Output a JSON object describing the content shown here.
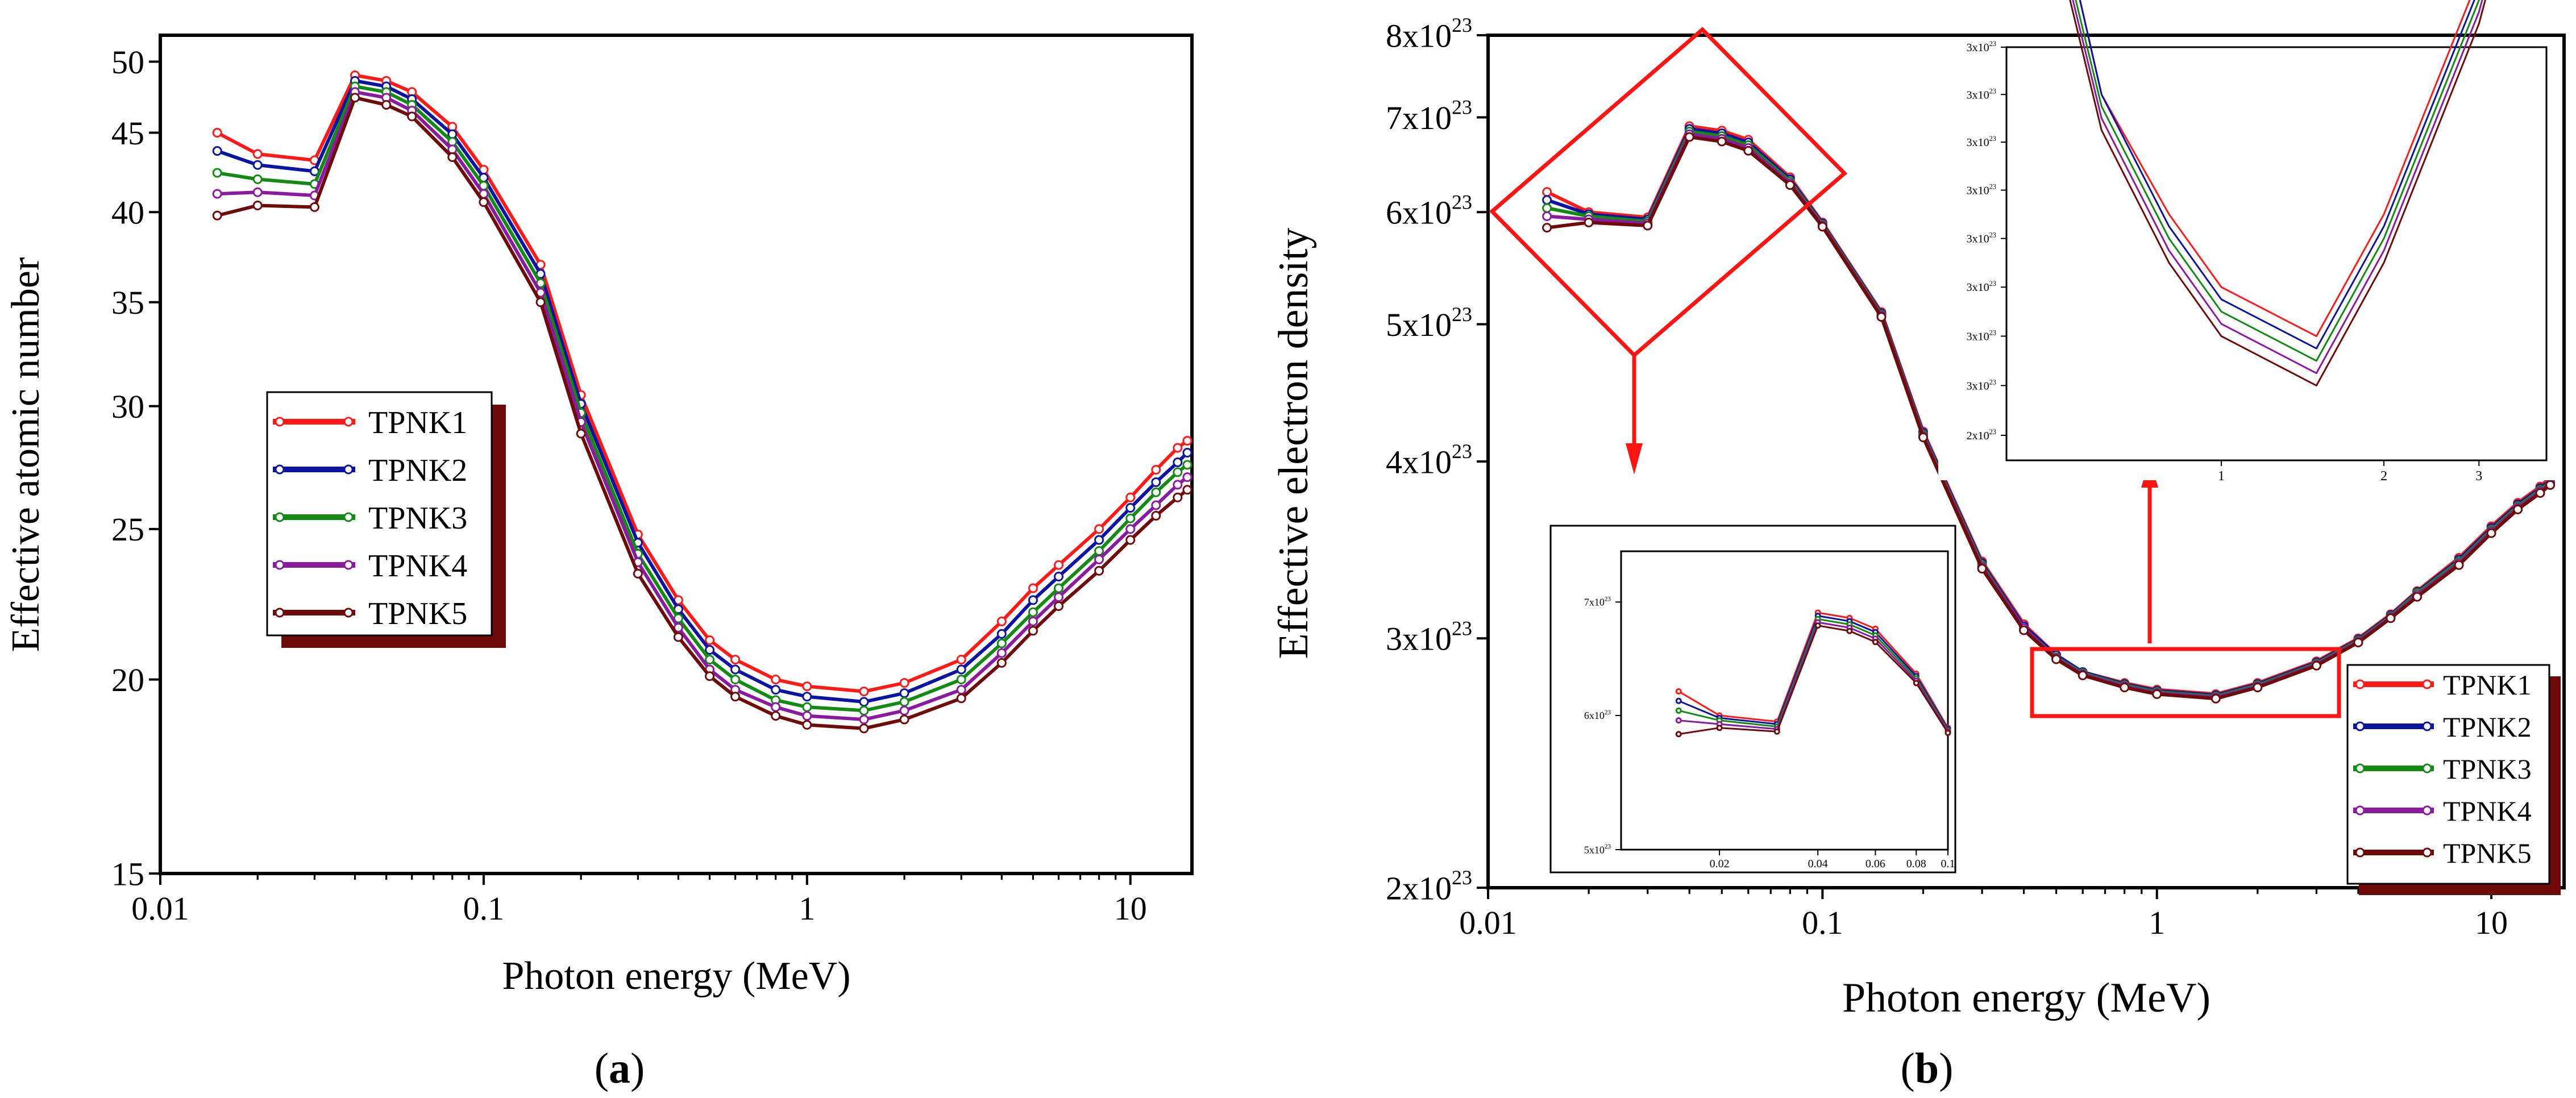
{
  "figure": {
    "panel_a_label": "a",
    "panel_b_label": "b"
  },
  "colors": {
    "TPNK1": "#ff1a1a",
    "TPNK2": "#0a14a0",
    "TPNK3": "#138a13",
    "TPNK4": "#8a1aa0",
    "TPNK5": "#6e0a0a",
    "highlight": "#ff1414",
    "legend_shadow": "#6e0a0a"
  },
  "chart_data": [
    {
      "id": "a",
      "type": "line",
      "xscale": "log",
      "yscale": "log",
      "xlabel": "Photon energy (MeV)",
      "ylabel": "Effective atomic number",
      "xlim": [
        0.01,
        15.5
      ],
      "ylim": [
        15,
        52
      ],
      "xticks": [
        0.01,
        0.1,
        1,
        10
      ],
      "xtick_labels": [
        "0.01",
        "0.1",
        "1",
        "10"
      ],
      "yticks": [
        15,
        20,
        25,
        30,
        35,
        40,
        45,
        50
      ],
      "ytick_labels": [
        "15",
        "20",
        "25",
        "30",
        "35",
        "40",
        "45",
        "50"
      ],
      "legend_position": "center-left",
      "x": [
        0.015,
        0.02,
        0.03,
        0.04,
        0.05,
        0.06,
        0.08,
        0.1,
        0.15,
        0.2,
        0.3,
        0.4,
        0.5,
        0.6,
        0.8,
        1,
        1.5,
        2,
        3,
        4,
        5,
        6,
        8,
        10,
        12,
        14,
        15
      ],
      "series": [
        {
          "name": "TPNK1",
          "values": [
            45.0,
            43.6,
            43.2,
            49.0,
            48.6,
            47.8,
            45.4,
            42.6,
            37.0,
            30.5,
            24.8,
            22.5,
            21.2,
            20.6,
            20.0,
            19.8,
            19.65,
            19.9,
            20.6,
            21.8,
            22.9,
            23.7,
            25.0,
            26.2,
            27.3,
            28.2,
            28.5
          ]
        },
        {
          "name": "TPNK2",
          "values": [
            43.8,
            42.9,
            42.5,
            48.6,
            48.2,
            47.3,
            44.9,
            42.1,
            36.5,
            30.1,
            24.5,
            22.2,
            20.9,
            20.3,
            19.7,
            19.5,
            19.35,
            19.6,
            20.3,
            21.4,
            22.5,
            23.3,
            24.6,
            25.8,
            26.8,
            27.6,
            28.0
          ]
        },
        {
          "name": "TPNK3",
          "values": [
            42.4,
            42.0,
            41.7,
            48.2,
            47.8,
            46.9,
            44.4,
            41.6,
            36.0,
            29.7,
            24.1,
            21.9,
            20.6,
            20.0,
            19.4,
            19.2,
            19.1,
            19.35,
            20.0,
            21.1,
            22.1,
            22.9,
            24.2,
            25.4,
            26.4,
            27.2,
            27.5
          ]
        },
        {
          "name": "TPNK4",
          "values": [
            41.1,
            41.2,
            41.0,
            47.8,
            47.4,
            46.5,
            43.9,
            41.1,
            35.5,
            29.3,
            23.8,
            21.6,
            20.3,
            19.7,
            19.2,
            18.95,
            18.85,
            19.1,
            19.7,
            20.8,
            21.8,
            22.6,
            23.9,
            25.0,
            25.9,
            26.7,
            27.0
          ]
        },
        {
          "name": "TPNK5",
          "values": [
            39.8,
            40.4,
            40.3,
            47.4,
            46.9,
            46.1,
            43.4,
            40.6,
            35.0,
            28.8,
            23.4,
            21.3,
            20.1,
            19.5,
            18.95,
            18.7,
            18.6,
            18.85,
            19.45,
            20.5,
            21.5,
            22.3,
            23.5,
            24.6,
            25.5,
            26.2,
            26.5
          ]
        }
      ]
    },
    {
      "id": "b",
      "type": "line",
      "xscale": "log",
      "yscale": "log",
      "xlabel": "Photon energy (MeV)",
      "ylabel": "Effective electron density",
      "xlim": [
        0.01,
        16.5
      ],
      "ylim": [
        2e+23,
        8e+23
      ],
      "xticks": [
        0.01,
        0.1,
        1,
        10
      ],
      "xtick_labels": [
        "0.01",
        "0.1",
        "1",
        "10"
      ],
      "yticks": [
        2e+23,
        3e+23,
        4e+23,
        5e+23,
        6e+23,
        7e+23,
        8e+23
      ],
      "ytick_labels": [
        {
          "mant": "2x10",
          "exp": "23"
        },
        {
          "mant": "3x10",
          "exp": "23"
        },
        {
          "mant": "4x10",
          "exp": "23"
        },
        {
          "mant": "5x10",
          "exp": "23"
        },
        {
          "mant": "6x10",
          "exp": "23"
        },
        {
          "mant": "7x10",
          "exp": "23"
        },
        {
          "mant": "8x10",
          "exp": "23"
        }
      ],
      "legend_position": "bottom-right",
      "x": [
        0.015,
        0.02,
        0.03,
        0.04,
        0.05,
        0.06,
        0.08,
        0.1,
        0.15,
        0.2,
        0.3,
        0.4,
        0.5,
        0.6,
        0.8,
        1,
        1.5,
        2,
        3,
        4,
        5,
        6,
        8,
        10,
        12,
        14,
        15
      ],
      "series": [
        {
          "name": "TPNK1",
          "values": [
            6.2e+23,
            6e+23,
            5.95e+23,
            6.9e+23,
            6.85e+23,
            6.75e+23,
            6.35e+23,
            5.9e+23,
            5.1e+23,
            4.2e+23,
            3.4e+23,
            3.07e+23,
            2.92e+23,
            2.84e+23,
            2.79e+23,
            2.76e+23,
            2.74e+23,
            2.79e+23,
            2.89e+23,
            3e+23,
            3.12e+23,
            3.24e+23,
            3.42e+23,
            3.6e+23,
            3.74e+23,
            3.84e+23,
            3.9e+23
          ]
        },
        {
          "name": "TPNK2",
          "values": [
            6.12e+23,
            5.98e+23,
            5.93e+23,
            6.87e+23,
            6.82e+23,
            6.72e+23,
            6.33e+23,
            5.89e+23,
            5.09e+23,
            4.19e+23,
            3.39e+23,
            3.06e+23,
            2.92e+23,
            2.84e+23,
            2.785e+23,
            2.755e+23,
            2.735e+23,
            2.785e+23,
            2.885e+23,
            2.995e+23,
            3.115e+23,
            3.235e+23,
            3.41e+23,
            3.59e+23,
            3.73e+23,
            3.83e+23,
            3.88e+23
          ]
        },
        {
          "name": "TPNK3",
          "values": [
            6.04e+23,
            5.96e+23,
            5.91e+23,
            6.84e+23,
            6.79e+23,
            6.69e+23,
            6.31e+23,
            5.88e+23,
            5.08e+23,
            4.18e+23,
            3.38e+23,
            3.05e+23,
            2.91e+23,
            2.835e+23,
            2.78e+23,
            2.75e+23,
            2.73e+23,
            2.78e+23,
            2.88e+23,
            2.99e+23,
            3.11e+23,
            3.23e+23,
            3.4e+23,
            3.58e+23,
            3.72e+23,
            3.82e+23,
            3.87e+23
          ]
        },
        {
          "name": "TPNK4",
          "values": [
            5.96e+23,
            5.93e+23,
            5.89e+23,
            6.81e+23,
            6.76e+23,
            6.66e+23,
            6.29e+23,
            5.87e+23,
            5.07e+23,
            4.17e+23,
            3.37e+23,
            3.05e+23,
            2.905e+23,
            2.83e+23,
            2.775e+23,
            2.745e+23,
            2.725e+23,
            2.775e+23,
            2.875e+23,
            2.985e+23,
            3.105e+23,
            3.22e+23,
            3.39e+23,
            3.57e+23,
            3.71e+23,
            3.81e+23,
            3.86e+23
          ]
        },
        {
          "name": "TPNK5",
          "values": [
            5.85e+23,
            5.9e+23,
            5.87e+23,
            6.78e+23,
            6.73e+23,
            6.63e+23,
            6.27e+23,
            5.86e+23,
            5.06e+23,
            4.16e+23,
            3.36e+23,
            3.04e+23,
            2.9e+23,
            2.825e+23,
            2.77e+23,
            2.74e+23,
            2.72e+23,
            2.77e+23,
            2.87e+23,
            2.98e+23,
            3.1e+23,
            3.21e+23,
            3.38e+23,
            3.56e+23,
            3.7e+23,
            3.8e+23,
            3.85e+23
          ]
        }
      ],
      "inset_low_energy": {
        "xlim": [
          0.01,
          0.1
        ],
        "ylim": [
          5e+23,
          7.5e+23
        ],
        "xticks": [
          0.02,
          0.04,
          0.06,
          0.08,
          0.1
        ],
        "xtick_labels": [
          "0.02",
          "0.04",
          "0.06",
          "0.08",
          "0.1"
        ],
        "yticks": [
          5e+23,
          6e+23,
          7e+23
        ],
        "ytick_labels": [
          "5x10",
          "6x10",
          "7x10"
        ],
        "ytick_exp": "23"
      },
      "inset_minimum": {
        "xlim": [
          0.4,
          4.0
        ],
        "ylim": [
          2.69e+23,
          2.86e+23
        ],
        "xticks": [
          1,
          2,
          3
        ],
        "xtick_labels": [
          "1",
          "2",
          "3"
        ],
        "yticks": [
          2.7e+23,
          2.72e+23,
          2.74e+23,
          2.76e+23,
          2.78e+23,
          2.8e+23,
          2.82e+23,
          2.84e+23,
          2.86e+23
        ],
        "ytick_labels": [
          "2x10",
          "3x10",
          "3x10",
          "3x10",
          "3x10",
          "3x10",
          "3x10",
          "3x10",
          "3x10"
        ],
        "ytick_exp": "23"
      }
    }
  ]
}
